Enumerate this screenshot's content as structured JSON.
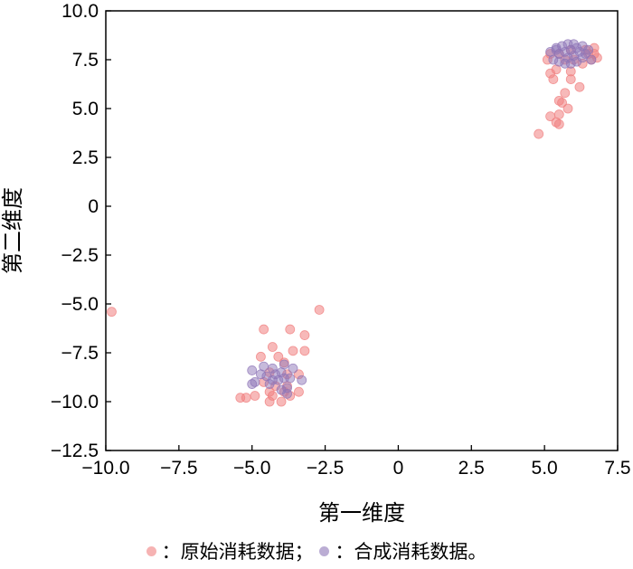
{
  "chart_data": {
    "type": "scatter",
    "xlabel": "第一维度",
    "ylabel": "第二维度",
    "xlim": [
      -10,
      7.5
    ],
    "ylim": [
      -12.5,
      10
    ],
    "xticks": [
      -10,
      -7.5,
      -5,
      -2.5,
      0,
      2.5,
      5,
      7.5
    ],
    "yticks": [
      10,
      7.5,
      5,
      2.5,
      0,
      -2.5,
      -5,
      -7.5,
      -10,
      -12.5
    ],
    "xtick_labels": [
      "−10.0",
      "−7.5",
      "−5.0",
      "−2.5",
      "0",
      "2.5",
      "5.0",
      "7.5"
    ],
    "ytick_labels": [
      "10.0",
      "7.5",
      "5.0",
      "2.5",
      "0",
      "−2.5",
      "−5.0",
      "−7.5",
      "−10.0",
      "−12.5"
    ],
    "grid": false,
    "legend_position": "bottom",
    "series": [
      {
        "name": "原始消耗数据",
        "color": "#f08080",
        "points": [
          [
            -9.8,
            -5.4
          ],
          [
            -2.7,
            -5.3
          ],
          [
            -4.6,
            -6.3
          ],
          [
            -3.7,
            -6.3
          ],
          [
            -3.2,
            -6.6
          ],
          [
            -4.3,
            -7.2
          ],
          [
            -3.6,
            -7.4
          ],
          [
            -3.2,
            -7.4
          ],
          [
            -4.7,
            -7.7
          ],
          [
            -4.1,
            -7.7
          ],
          [
            -3.9,
            -8.0
          ],
          [
            -4.4,
            -8.5
          ],
          [
            -3.8,
            -8.6
          ],
          [
            -3.4,
            -8.6
          ],
          [
            -4.6,
            -9.0
          ],
          [
            -4.2,
            -9.2
          ],
          [
            -3.8,
            -9.2
          ],
          [
            -4.4,
            -9.5
          ],
          [
            -3.9,
            -9.5
          ],
          [
            -3.4,
            -9.5
          ],
          [
            -4.9,
            -9.7
          ],
          [
            -4.3,
            -9.7
          ],
          [
            -3.7,
            -9.7
          ],
          [
            -5.4,
            -9.8
          ],
          [
            -5.2,
            -9.8
          ],
          [
            -4.4,
            -10.0
          ],
          [
            -4.0,
            -10.0
          ],
          [
            4.8,
            3.7
          ],
          [
            5.2,
            4.6
          ],
          [
            5.4,
            4.3
          ],
          [
            5.5,
            4.2
          ],
          [
            5.5,
            4.7
          ],
          [
            5.8,
            5.0
          ],
          [
            5.6,
            5.3
          ],
          [
            5.5,
            5.4
          ],
          [
            5.7,
            5.8
          ],
          [
            6.2,
            6.1
          ],
          [
            5.9,
            6.5
          ],
          [
            5.3,
            6.5
          ],
          [
            5.2,
            6.8
          ],
          [
            5.9,
            6.9
          ],
          [
            5.4,
            7.0
          ],
          [
            6.3,
            7.3
          ],
          [
            5.1,
            7.5
          ],
          [
            5.7,
            7.5
          ],
          [
            6.0,
            7.5
          ],
          [
            6.6,
            7.5
          ],
          [
            6.8,
            7.6
          ],
          [
            5.2,
            7.8
          ],
          [
            5.5,
            7.8
          ],
          [
            6.5,
            7.8
          ],
          [
            6.7,
            7.8
          ],
          [
            5.9,
            8.0
          ],
          [
            6.4,
            8.0
          ],
          [
            6.7,
            8.1
          ]
        ]
      },
      {
        "name": "合成消耗数据。",
        "color": "#8e76b8",
        "points": [
          [
            -5.0,
            -8.4
          ],
          [
            -4.9,
            -9.0
          ],
          [
            -5.0,
            -9.1
          ],
          [
            -4.7,
            -8.6
          ],
          [
            -4.6,
            -8.2
          ],
          [
            -4.5,
            -8.7
          ],
          [
            -4.3,
            -8.3
          ],
          [
            -4.2,
            -8.6
          ],
          [
            -4.1,
            -8.9
          ],
          [
            -4.0,
            -8.5
          ],
          [
            -3.9,
            -8.1
          ],
          [
            -3.9,
            -8.8
          ],
          [
            -3.8,
            -9.3
          ],
          [
            -4.3,
            -8.9
          ],
          [
            -4.0,
            -9.4
          ],
          [
            -3.7,
            -8.8
          ],
          [
            -3.6,
            -8.3
          ],
          [
            -3.3,
            -8.9
          ],
          [
            -4.4,
            -9.1
          ],
          [
            -3.8,
            -9.6
          ],
          [
            5.2,
            7.9
          ],
          [
            5.3,
            7.5
          ],
          [
            5.4,
            8.0
          ],
          [
            5.5,
            7.8
          ],
          [
            5.5,
            7.4
          ],
          [
            5.6,
            8.2
          ],
          [
            5.7,
            7.9
          ],
          [
            5.7,
            7.3
          ],
          [
            5.8,
            8.3
          ],
          [
            5.8,
            7.6
          ],
          [
            5.9,
            8.0
          ],
          [
            6.0,
            8.3
          ],
          [
            6.0,
            7.7
          ],
          [
            6.1,
            8.1
          ],
          [
            6.1,
            7.4
          ],
          [
            6.2,
            7.9
          ],
          [
            6.3,
            8.2
          ],
          [
            6.3,
            7.6
          ],
          [
            6.4,
            7.8
          ],
          [
            6.5,
            8.0
          ],
          [
            6.6,
            7.5
          ],
          [
            5.4,
            8.1
          ],
          [
            5.9,
            7.3
          ]
        ]
      }
    ],
    "legend": [
      {
        "marker_color": "#f08080",
        "label": "：原始消耗数据；"
      },
      {
        "marker_color": "#8e76b8",
        "label": "：合成消耗数据。"
      }
    ]
  }
}
